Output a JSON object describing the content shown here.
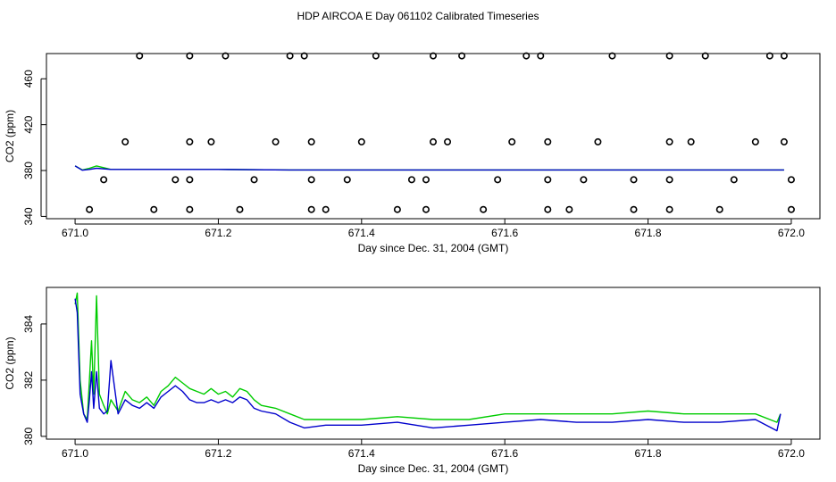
{
  "figure": {
    "title": "HDP AIRCOA E  Day 061102  Calibrated Timeseries"
  },
  "chart_data": [
    {
      "type": "line",
      "xlabel": "Day since Dec. 31, 2004 (GMT)",
      "ylabel": "CO2 (ppm)",
      "xlim": [
        670.96,
        672.04
      ],
      "ylim": [
        338,
        482
      ],
      "x_ticks": [
        671.0,
        671.2,
        671.4,
        671.6,
        671.8,
        672.0
      ],
      "x_tick_labels": [
        "671.0",
        "671.2",
        "671.4",
        "671.6",
        "671.8",
        "672.0"
      ],
      "y_ticks": [
        340,
        380,
        420,
        460
      ],
      "y_tick_labels": [
        "340",
        "380",
        "420",
        "460"
      ],
      "grid": false,
      "series": [
        {
          "color": "#00cc00",
          "x": [
            671.0,
            671.01,
            671.02,
            671.03,
            671.05,
            671.1,
            671.2,
            671.3,
            671.5,
            671.7,
            671.9,
            671.99
          ],
          "values": [
            384,
            380.5,
            382,
            384,
            381,
            381,
            381,
            380.5,
            380.5,
            380.5,
            380.5,
            380.5
          ]
        },
        {
          "color": "#0000cc",
          "x": [
            671.0,
            671.01,
            671.02,
            671.03,
            671.05,
            671.1,
            671.2,
            671.3,
            671.5,
            671.7,
            671.9,
            671.99
          ],
          "values": [
            384,
            380.3,
            381,
            382,
            381,
            381,
            381,
            380.5,
            380.5,
            380.5,
            380.5,
            380.5
          ]
        }
      ],
      "points": {
        "x": [
          671.09,
          671.16,
          671.21,
          671.3,
          671.32,
          671.42,
          671.5,
          671.54,
          671.63,
          671.65,
          671.75,
          671.83,
          671.88,
          671.97,
          671.99,
          671.07,
          671.16,
          671.19,
          671.28,
          671.33,
          671.4,
          671.5,
          671.52,
          671.61,
          671.66,
          671.73,
          671.83,
          671.86,
          671.95,
          671.99,
          671.04,
          671.14,
          671.16,
          671.25,
          671.33,
          671.38,
          671.47,
          671.49,
          671.59,
          671.66,
          671.71,
          671.78,
          671.83,
          671.92,
          672.0,
          671.02,
          671.11,
          671.16,
          671.23,
          671.33,
          671.35,
          671.45,
          671.49,
          671.57,
          671.66,
          671.69,
          671.78,
          671.83,
          671.9,
          672.0
        ],
        "values": [
          480,
          480,
          480,
          480,
          480,
          480,
          480,
          480,
          480,
          480,
          480,
          480,
          480,
          480,
          480,
          405,
          405,
          405,
          405,
          405,
          405,
          405,
          405,
          405,
          405,
          405,
          405,
          405,
          405,
          405,
          372,
          372,
          372,
          372,
          372,
          372,
          372,
          372,
          372,
          372,
          372,
          372,
          372,
          372,
          372,
          346,
          346,
          346,
          346,
          346,
          346,
          346,
          346,
          346,
          346,
          346,
          346,
          346,
          346,
          346
        ]
      }
    },
    {
      "type": "line",
      "xlabel": "Day since Dec. 31, 2004 (GMT)",
      "ylabel": "CO2 (ppm)",
      "xlim": [
        670.96,
        672.04
      ],
      "ylim": [
        379.9,
        385.3
      ],
      "x_ticks": [
        671.0,
        671.2,
        671.4,
        671.6,
        671.8,
        672.0
      ],
      "x_tick_labels": [
        "671.0",
        "671.2",
        "671.4",
        "671.6",
        "671.8",
        "672.0"
      ],
      "y_ticks": [
        380,
        382,
        384
      ],
      "y_tick_labels": [
        "380",
        "382",
        "384"
      ],
      "grid": false,
      "series": [
        {
          "color": "#00cc00",
          "x": [
            671.0,
            671.003,
            671.007,
            671.012,
            671.017,
            671.02,
            671.023,
            671.026,
            671.03,
            671.034,
            671.04,
            671.045,
            671.05,
            671.06,
            671.07,
            671.08,
            671.09,
            671.1,
            671.11,
            671.12,
            671.13,
            671.14,
            671.15,
            671.16,
            671.17,
            671.18,
            671.19,
            671.2,
            671.21,
            671.22,
            671.23,
            671.24,
            671.25,
            671.26,
            671.28,
            671.3,
            671.32,
            671.35,
            671.4,
            671.45,
            671.5,
            671.55,
            671.6,
            671.65,
            671.7,
            671.75,
            671.8,
            671.85,
            671.9,
            671.95,
            671.98,
            671.985
          ],
          "values": [
            384.7,
            385.1,
            382.0,
            380.8,
            380.6,
            382.0,
            383.4,
            381.5,
            385.0,
            381.5,
            381.1,
            380.8,
            381.3,
            380.9,
            381.6,
            381.3,
            381.2,
            381.4,
            381.1,
            381.6,
            381.8,
            382.1,
            381.9,
            381.7,
            381.6,
            381.5,
            381.7,
            381.5,
            381.6,
            381.4,
            381.7,
            381.6,
            381.3,
            381.1,
            381.0,
            380.8,
            380.6,
            380.6,
            380.6,
            380.7,
            380.6,
            380.6,
            380.8,
            380.8,
            380.8,
            380.8,
            380.9,
            380.8,
            380.8,
            380.8,
            380.5,
            380.8
          ]
        },
        {
          "color": "#0000cc",
          "x": [
            671.0,
            671.003,
            671.007,
            671.012,
            671.017,
            671.02,
            671.023,
            671.026,
            671.03,
            671.034,
            671.04,
            671.045,
            671.05,
            671.06,
            671.07,
            671.08,
            671.09,
            671.1,
            671.11,
            671.12,
            671.13,
            671.14,
            671.15,
            671.16,
            671.17,
            671.18,
            671.19,
            671.2,
            671.21,
            671.22,
            671.23,
            671.24,
            671.25,
            671.26,
            671.28,
            671.3,
            671.32,
            671.35,
            671.4,
            671.45,
            671.5,
            671.55,
            671.6,
            671.65,
            671.7,
            671.75,
            671.8,
            671.85,
            671.9,
            671.95,
            671.98,
            671.985
          ],
          "values": [
            384.9,
            384.4,
            381.5,
            380.8,
            380.5,
            381.3,
            382.3,
            381.0,
            382.3,
            381.0,
            380.8,
            380.9,
            382.7,
            380.8,
            381.3,
            381.1,
            381.0,
            381.2,
            381.0,
            381.4,
            381.6,
            381.8,
            381.6,
            381.3,
            381.2,
            381.2,
            381.3,
            381.2,
            381.3,
            381.2,
            381.4,
            381.3,
            381.0,
            380.9,
            380.8,
            380.5,
            380.3,
            380.4,
            380.4,
            380.5,
            380.3,
            380.4,
            380.5,
            380.6,
            380.5,
            380.5,
            380.6,
            380.5,
            380.5,
            380.6,
            380.2,
            380.8
          ]
        }
      ]
    }
  ]
}
